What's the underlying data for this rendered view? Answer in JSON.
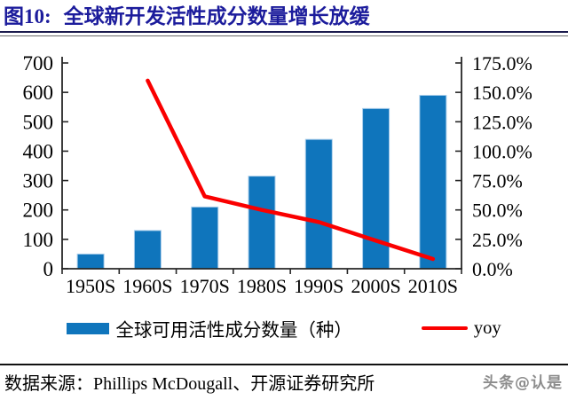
{
  "title": {
    "prefix": "图10:",
    "text": "全球新开发活性成分数量增长放缓"
  },
  "chart_data": {
    "type": "bar+line",
    "categories": [
      "1950S",
      "1960S",
      "1970S",
      "1980S",
      "1990S",
      "2000S",
      "2010S"
    ],
    "series": [
      {
        "name": "全球可用活性成分数量（种）",
        "type": "bar",
        "axis": "left",
        "values": [
          50,
          130,
          210,
          315,
          440,
          545,
          590
        ]
      },
      {
        "name": "yoy",
        "type": "line",
        "axis": "right",
        "unit": "%",
        "values": [
          null,
          160.0,
          61.5,
          50.0,
          39.7,
          23.9,
          8.3
        ]
      }
    ],
    "left_axis": {
      "min": 0,
      "max": 700,
      "step": 100,
      "tick_labels": [
        "700",
        "600",
        "500",
        "400",
        "300",
        "200",
        "100",
        "0"
      ]
    },
    "right_axis": {
      "min": 0,
      "max": 175,
      "step": 25,
      "tick_labels": [
        "175.0%",
        "150.0%",
        "125.0%",
        "100.0%",
        "75.0%",
        "50.0%",
        "25.0%",
        "0.0%"
      ]
    },
    "grid": false,
    "legend_position": "bottom"
  },
  "source": {
    "text": "数据来源：Phillips McDougall、开源证券研究所"
  },
  "watermark": "头条@认是",
  "colors": {
    "title": "#1C1C9C",
    "bar": "#0F75BC",
    "bar_edge": "#A9CDEB",
    "line": "#FA0000",
    "axis": "#262626",
    "watermark": "#8C8C8C"
  }
}
